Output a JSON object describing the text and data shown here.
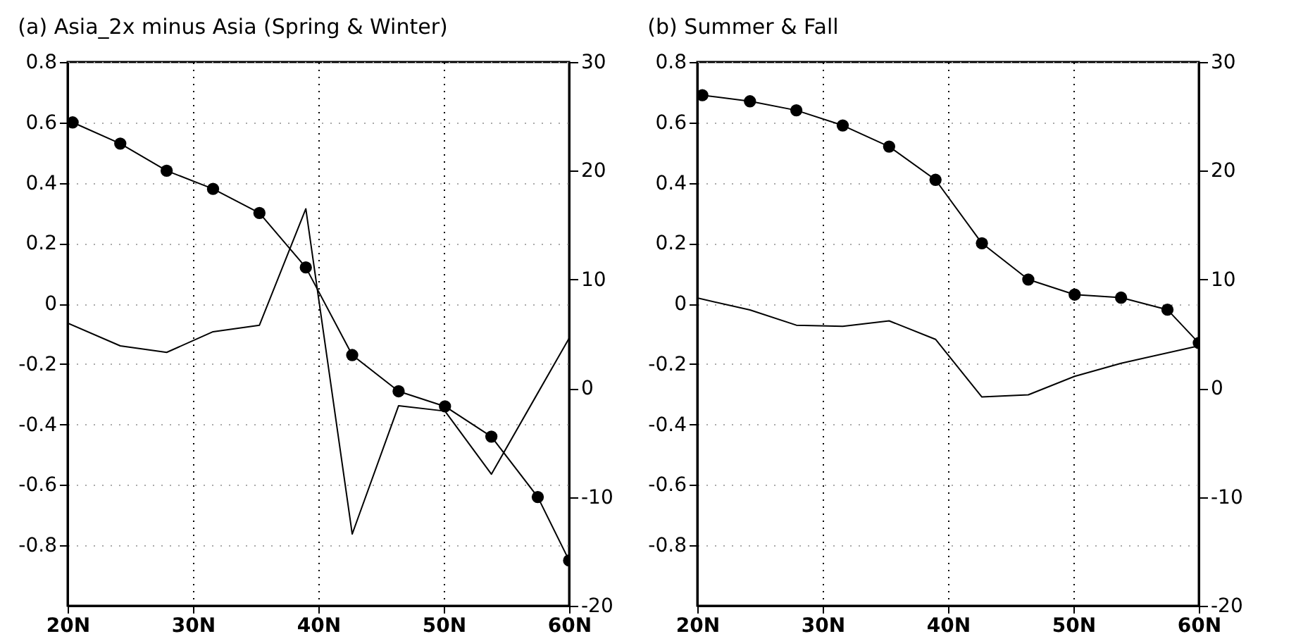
{
  "chart_data": [
    {
      "type": "line",
      "title": "(a) Asia_2x minus Asia (Spring & Winter)",
      "xlim": [
        20,
        60
      ],
      "xticks": [
        {
          "value": 20,
          "label": "20N"
        },
        {
          "value": 30,
          "label": "30N"
        },
        {
          "value": 40,
          "label": "40N"
        },
        {
          "value": 50,
          "label": "50N"
        },
        {
          "value": 60,
          "label": "60N"
        }
      ],
      "ylim": [
        -1,
        0.8
      ],
      "yticks": [
        -0.8,
        -0.6,
        -0.4,
        -0.2,
        0,
        0.2,
        0.4,
        0.6,
        0.8
      ],
      "y2lim": [
        -20,
        30
      ],
      "y2ticks": [
        -20,
        -10,
        0,
        10,
        20,
        30
      ],
      "grid": true,
      "line_style": "solid",
      "series": [
        {
          "color": "#000000",
          "marker": "circle",
          "x": [
            20.4,
            24.2,
            27.9,
            31.6,
            35.3,
            39.0,
            42.7,
            46.4,
            50.1,
            53.8,
            57.5,
            60
          ],
          "values": [
            0.6,
            0.53,
            0.44,
            0.38,
            0.3,
            0.12,
            -0.17,
            -0.29,
            -0.34,
            -0.44,
            -0.64,
            -0.85
          ]
        },
        {
          "color": "#000000",
          "axis": "y2",
          "marker": "none",
          "x": [
            20,
            24.2,
            27.9,
            31.6,
            35.3,
            39.0,
            42.7,
            46.4,
            50.1,
            53.8,
            60
          ],
          "values": [
            6.0,
            3.9,
            3.3,
            5.2,
            5.8,
            16.5,
            -13.4,
            -1.6,
            -2.1,
            -7.9,
            4.6
          ]
        }
      ]
    },
    {
      "type": "line",
      "title": "(b) Summer & Fall",
      "xlim": [
        20,
        60
      ],
      "xticks": [
        {
          "value": 20,
          "label": "20N"
        },
        {
          "value": 30,
          "label": "30N"
        },
        {
          "value": 40,
          "label": "40N"
        },
        {
          "value": 50,
          "label": "50N"
        },
        {
          "value": 60,
          "label": "60N"
        }
      ],
      "ylim": [
        -1,
        0.8
      ],
      "yticks": [
        -0.8,
        -0.6,
        -0.4,
        -0.2,
        0,
        0.2,
        0.4,
        0.6,
        0.8
      ],
      "y2lim": [
        -20,
        30
      ],
      "y2ticks": [
        -20,
        -10,
        0,
        10,
        20,
        30
      ],
      "grid": true,
      "line_style": "solid",
      "series": [
        {
          "color": "#000000",
          "marker": "circle",
          "x": [
            20.4,
            24.2,
            27.9,
            31.6,
            35.3,
            39.0,
            42.7,
            46.4,
            50.1,
            53.8,
            57.5,
            60
          ],
          "values": [
            0.69,
            0.67,
            0.64,
            0.59,
            0.52,
            0.41,
            0.2,
            0.08,
            0.03,
            0.02,
            -0.02,
            -0.13
          ]
        },
        {
          "color": "#000000",
          "axis": "y2",
          "marker": "none",
          "x": [
            20,
            24.2,
            27.9,
            31.6,
            35.3,
            39.0,
            42.7,
            46.4,
            50.1,
            53.8,
            60
          ],
          "values": [
            8.3,
            7.2,
            5.8,
            5.7,
            6.2,
            4.5,
            -0.8,
            -0.6,
            1.1,
            2.3,
            3.9
          ]
        }
      ]
    }
  ]
}
